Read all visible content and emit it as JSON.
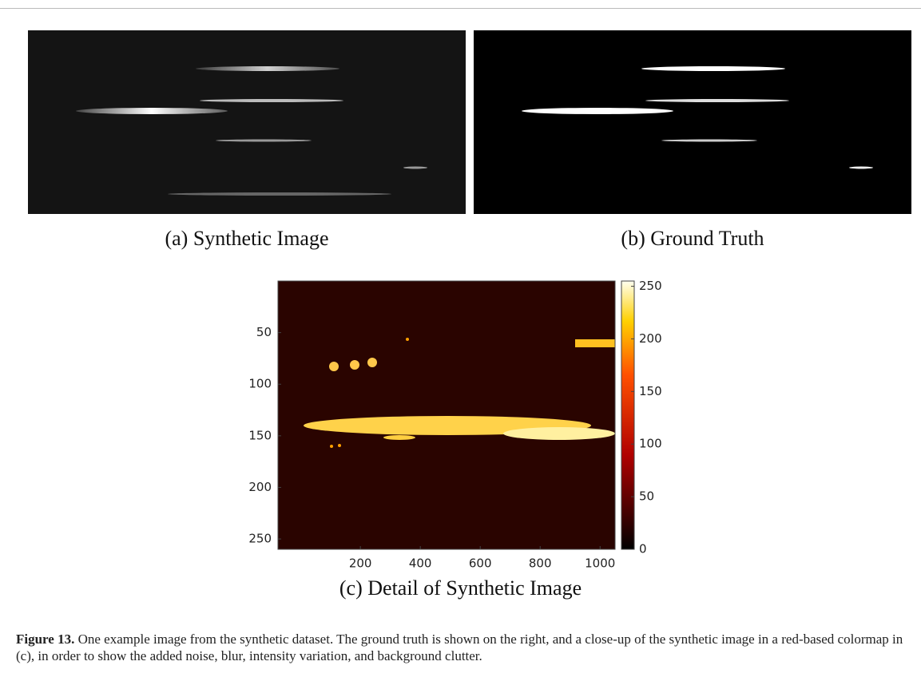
{
  "panels": [
    {
      "label": "(a) Synthetic Image"
    },
    {
      "label": "(b) Ground Truth"
    },
    {
      "label": "(c) Detail of Synthetic Image",
      "xlim": [
        -75,
        1050
      ],
      "xticks": [
        200,
        400,
        600,
        800,
        1000
      ],
      "ylim": [
        0,
        260
      ],
      "yticks": [
        50,
        100,
        150,
        200,
        250
      ],
      "colorbar": {
        "lim": [
          0,
          255
        ],
        "ticks": [
          0,
          50,
          100,
          150,
          200,
          250
        ]
      }
    }
  ],
  "caption": {
    "label": "Figure 13.",
    "text": "One example image from the synthetic dataset. The ground truth is shown on the right, and a close-up of the synthetic image in a red-based colormap in (c), in order to show the added noise, blur, intensity variation, and background clutter."
  }
}
